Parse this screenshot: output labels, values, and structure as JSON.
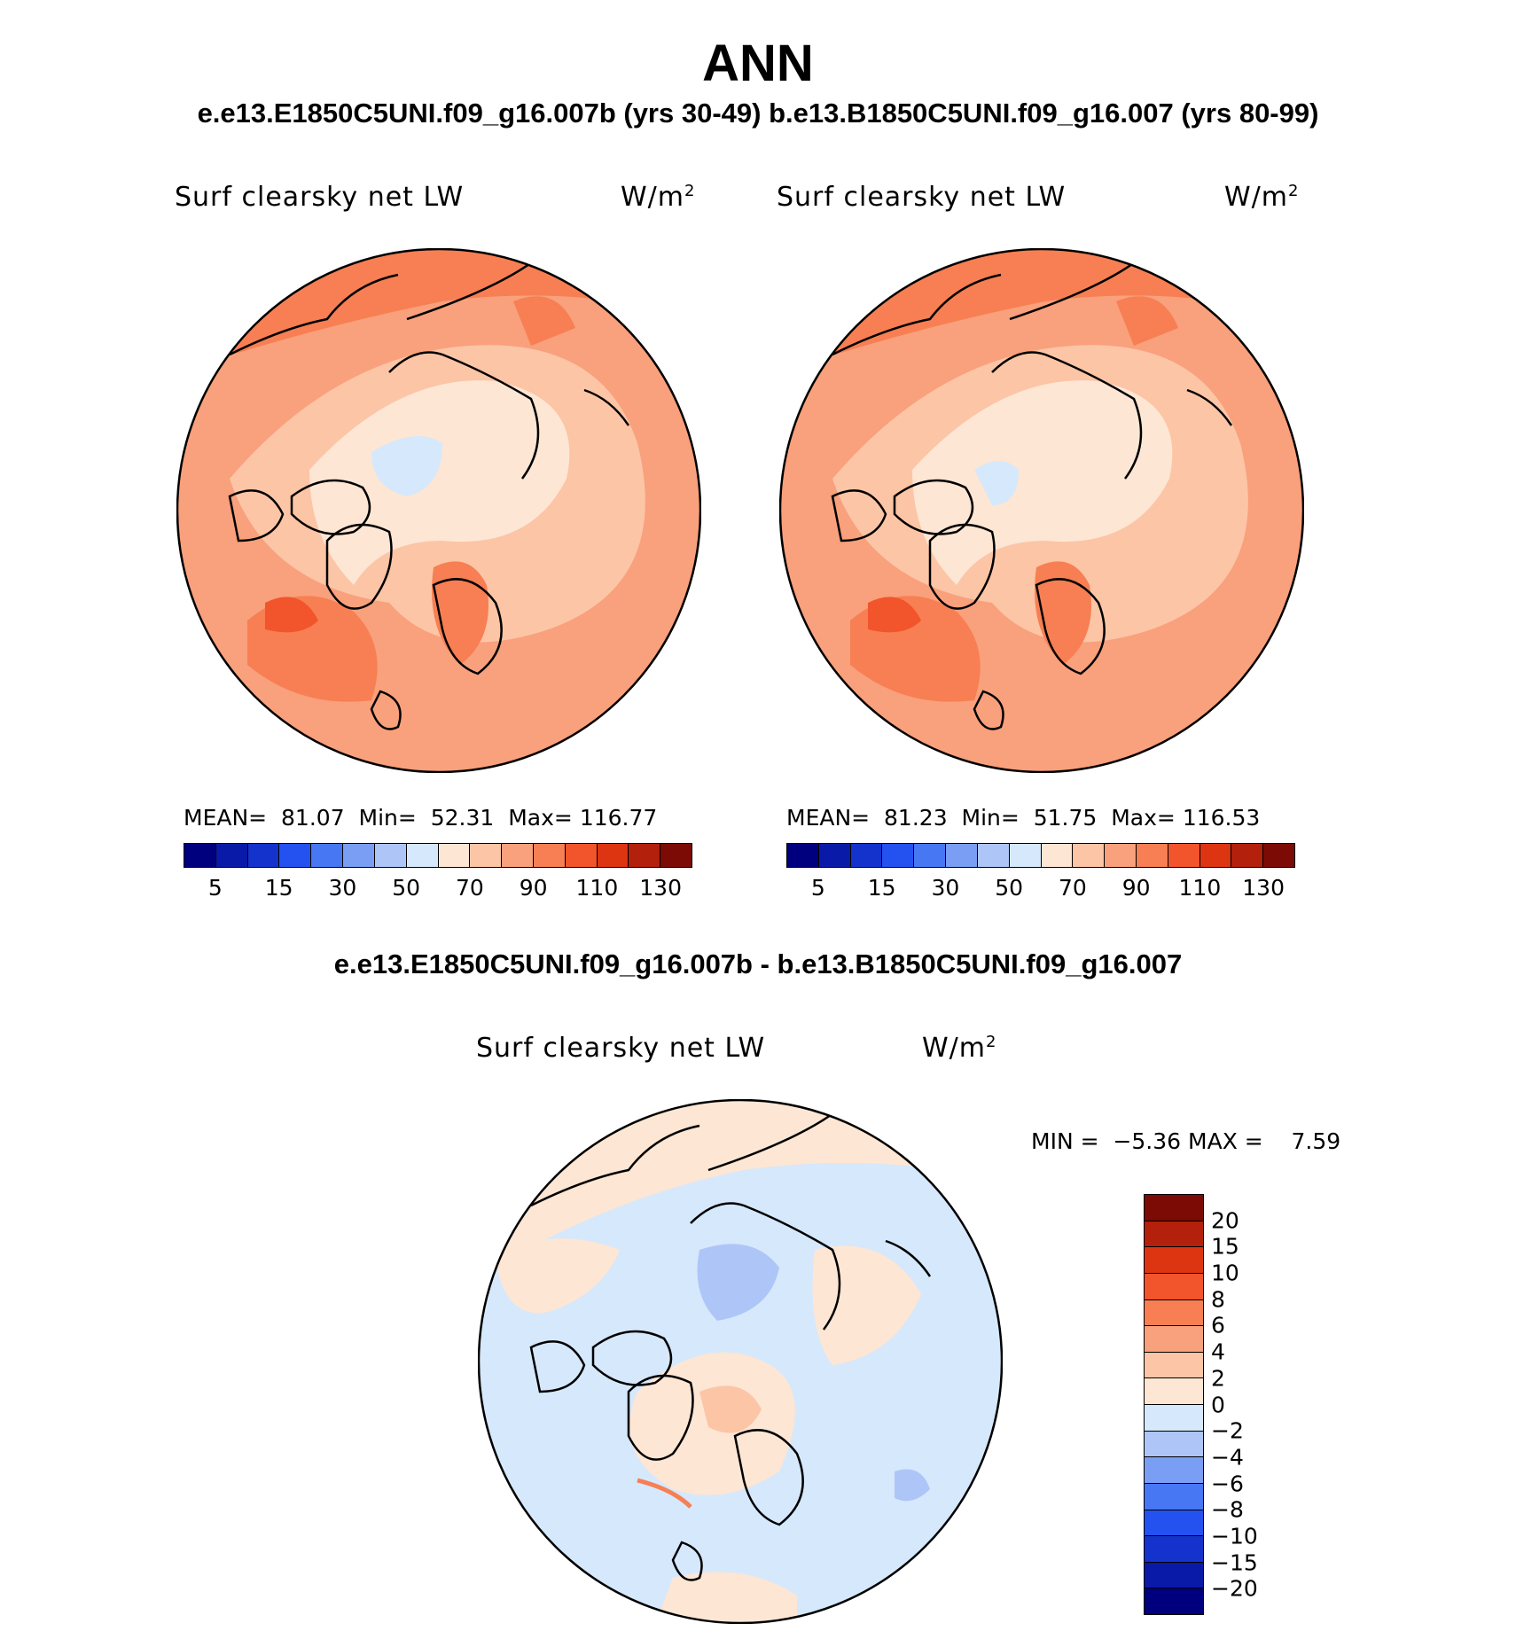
{
  "title": "ANN",
  "subtitle": "e.e13.E1850C5UNI.f09_g16.007b (yrs 30-49)  b.e13.B1850C5UNI.f09_g16.007 (yrs 80-99)",
  "diff_title": "e.e13.E1850C5UNI.f09_g16.007b - b.e13.B1850C5UNI.f09_g16.007",
  "variable": "Surf clearsky net LW",
  "units_base": "W/m",
  "units_exp": "2",
  "panels": [
    {
      "mean_label": "MEAN=",
      "mean": "81.07",
      "min_label": "Min=",
      "min": "52.31",
      "max_label": "Max=",
      "max": "116.77"
    },
    {
      "mean_label": "MEAN=",
      "mean": "81.23",
      "min_label": "Min=",
      "min": "51.75",
      "max_label": "Max=",
      "max": "116.53"
    }
  ],
  "abs_colorbar": {
    "ticks": [
      "5",
      "15",
      "30",
      "50",
      "70",
      "90",
      "110",
      "130"
    ],
    "colors": [
      "#00007f",
      "#0a1aa8",
      "#1433cc",
      "#2452f0",
      "#4777f2",
      "#7a9ef4",
      "#aec6f7",
      "#d6e8fb",
      "#fde6d4",
      "#fcc5a6",
      "#f9a07c",
      "#f77f53",
      "#f2542b",
      "#dd3412",
      "#b3200b",
      "#7c0a05"
    ]
  },
  "diff_stats": {
    "min_label": "MIN =",
    "min": "−5.36",
    "max_label": "MAX =",
    "max": "7.59"
  },
  "diff_colorbar": {
    "ticks": [
      "20",
      "15",
      "10",
      "8",
      "6",
      "4",
      "2",
      "0",
      "−2",
      "−4",
      "−6",
      "−8",
      "−10",
      "−15",
      "−20"
    ],
    "colors": [
      "#7c0a05",
      "#b3200b",
      "#dd3412",
      "#f2542b",
      "#f77f53",
      "#f9a07c",
      "#fcc5a6",
      "#fde6d4",
      "#d6e8fb",
      "#aec6f7",
      "#7a9ef4",
      "#4777f2",
      "#2452f0",
      "#1433cc",
      "#0a1aa8",
      "#00007f"
    ]
  }
}
